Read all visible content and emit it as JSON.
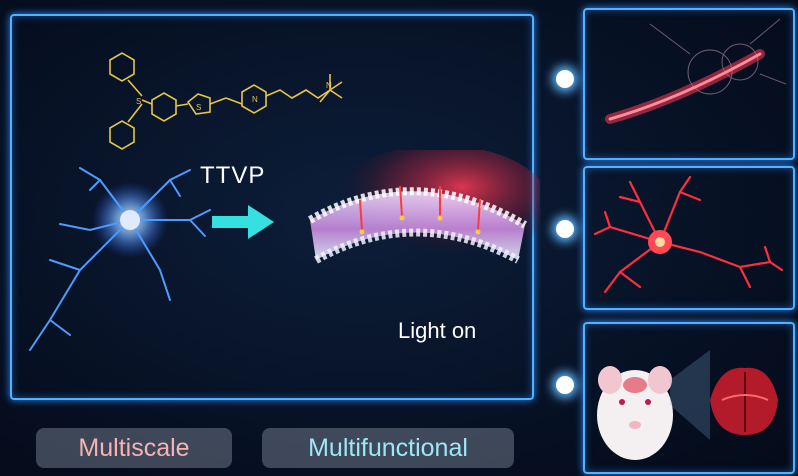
{
  "molecule_name": "TTVP",
  "membrane_caption": "Light on",
  "feature_labels": {
    "left": "Multiscale",
    "right": "Multifunctional"
  },
  "colors": {
    "frame_glow": "#4fb3ff",
    "molecule_stroke": "#e6c547",
    "arrow": "#35e0e0",
    "membrane_glow": "#ff3a55",
    "pill_left_text": "#f7b2b2",
    "pill_right_text": "#9fe7f5"
  },
  "panels": [
    {
      "icon": "neuron-axon-red-stain-icon"
    },
    {
      "icon": "single-neuron-red-stain-icon"
    },
    {
      "icon": "mouse-brain-imaging-icon"
    }
  ]
}
